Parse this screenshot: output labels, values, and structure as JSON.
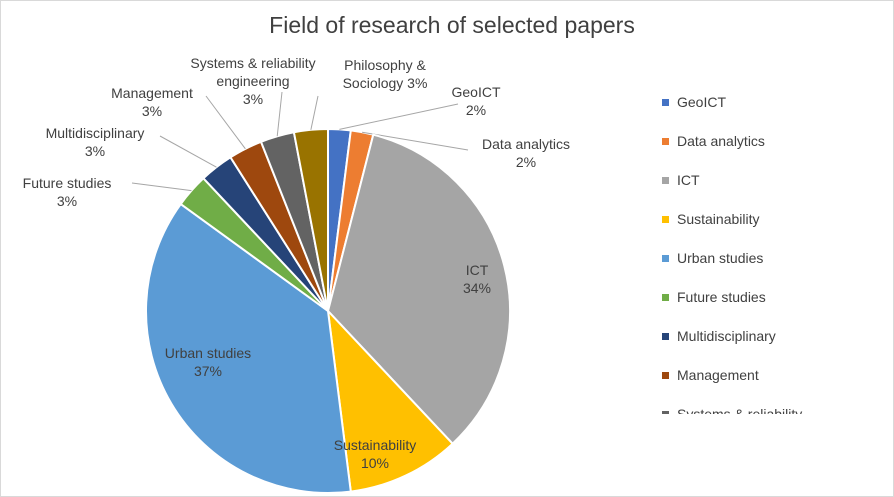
{
  "chart_data": {
    "type": "pie",
    "title": "Field of research of selected papers",
    "categories": [
      "GeoICT",
      "Data analytics",
      "ICT",
      "Sustainability",
      "Urban studies",
      "Future studies",
      "Multidisciplinary",
      "Management",
      "Systems & reliability engineering",
      "Philosophy & Sociology"
    ],
    "values": [
      2,
      2,
      34,
      10,
      37,
      3,
      3,
      3,
      3,
      3
    ],
    "value_labels": [
      "2%",
      "2%",
      "34%",
      "10%",
      "37%",
      "3%",
      "3%",
      "3%",
      "3%",
      "3%"
    ],
    "colors": [
      "#4472c4",
      "#ed7d31",
      "#a5a5a5",
      "#ffc000",
      "#5b9bd5",
      "#70ad47",
      "#264478",
      "#9e480e",
      "#636363",
      "#997300"
    ],
    "legend": "right"
  }
}
